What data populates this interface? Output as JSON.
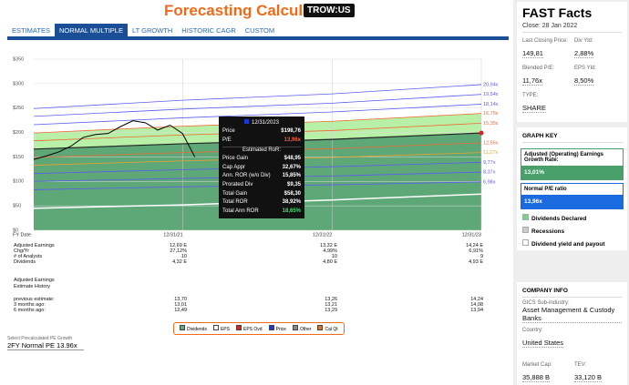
{
  "header": {
    "title": "Forecasting Calculators",
    "ticker": "TROW:US"
  },
  "tabs": [
    "ESTIMATES",
    "NORMAL MULTIPLE",
    "LT GROWTH",
    "HISTORIC CAGR",
    "CUSTOM"
  ],
  "chart": {
    "ylim": [
      0,
      350
    ],
    "yticks": [
      {
        "value": 0,
        "label": "$0"
      },
      {
        "value": 50,
        "label": "$50"
      },
      {
        "value": 100,
        "label": "$100"
      },
      {
        "value": 150,
        "label": "$150"
      },
      {
        "value": 200,
        "label": "$200"
      },
      {
        "value": 250,
        "label": "$250"
      },
      {
        "value": 300,
        "label": "$300"
      },
      {
        "value": 350,
        "label": "$350"
      }
    ],
    "fy_label": "FY Date",
    "x_labels": [
      "12/31/21",
      "12/31/22",
      "12/31/23"
    ],
    "pe_lines": [
      {
        "label": "20,94x",
        "color": "#5b5bf0",
        "values": [
          249,
          266,
          279,
          298
        ]
      },
      {
        "label": "19,54x",
        "color": "#5b5bf0",
        "values": [
          233,
          248,
          260,
          278
        ]
      },
      {
        "label": "18,14x",
        "color": "#5b5bf0",
        "values": [
          216,
          230,
          242,
          258
        ]
      },
      {
        "label": "16,75x",
        "color": "#f06a30",
        "values": [
          199,
          213,
          223,
          239
        ]
      },
      {
        "label": "15,35x",
        "color": "#f06a30",
        "values": [
          183,
          195,
          204,
          219
        ]
      },
      {
        "label": "12,56x",
        "color": "#f06a30",
        "values": [
          149,
          159,
          167,
          179
        ]
      },
      {
        "label": "11,17x",
        "color": "#f0a030",
        "values": [
          133,
          142,
          149,
          159
        ]
      },
      {
        "label": "9,77x",
        "color": "#5b5bf0",
        "values": [
          116,
          124,
          130,
          139
        ]
      },
      {
        "label": "8,37x",
        "color": "#5b5bf0",
        "values": [
          100,
          106,
          111,
          119
        ]
      },
      {
        "label": "6,98x",
        "color": "#5b5bf0",
        "values": [
          83,
          89,
          93,
          99
        ]
      }
    ],
    "normal_line": {
      "color": "#222222",
      "values": [
        166,
        177,
        186,
        199
      ]
    },
    "dividends": {
      "color": "#ffffff",
      "values": [
        45,
        52,
        62,
        74
      ]
    },
    "price": {
      "color": "#000000",
      "values": [
        145,
        152,
        160,
        172,
        190,
        196,
        198,
        212,
        224,
        220,
        205,
        215,
        198,
        150
      ]
    },
    "tooltip": {
      "date": "12/31/2023",
      "rows": [
        [
          "Price",
          "$198,76"
        ],
        [
          "P/E",
          "13,96x"
        ]
      ],
      "subtitle": "Estimated RoR:",
      "ror": [
        [
          "Price Gain",
          "$48,95"
        ],
        [
          "Cap Appr",
          "32,67%"
        ],
        [
          "Ann. ROR (w/o Div)",
          "15,85%"
        ],
        [
          "Prorated Div",
          "$9,35"
        ],
        [
          "Total Gain",
          "$58,30"
        ],
        [
          "Total ROR",
          "38,92%"
        ],
        [
          "Total Ann ROR",
          "18,65%"
        ]
      ]
    }
  },
  "table": {
    "rows": [
      [
        "Adjusted Earnings",
        "12,69 E",
        "13,32 E",
        "14,24 E"
      ],
      [
        "Chg/Yr",
        "27,12%",
        "4,99%",
        "6,91%"
      ],
      [
        "# of Analysts",
        "10",
        "10",
        "9"
      ],
      [
        "Dividends",
        "4,32 E",
        "4,80 E",
        "4,93 E"
      ]
    ],
    "history_title": "Adjusted Earnings Estimate History",
    "history": [
      [
        "previous estimate:",
        "13,70",
        "13,26",
        "14,24"
      ],
      [
        "3 months ago:",
        "13,01",
        "13,21",
        "14,08"
      ],
      [
        "6 months ago:",
        "12,49",
        "13,29",
        "13,94"
      ]
    ]
  },
  "legend": [
    "Dividends",
    "EPS",
    "EPS Ovd",
    "Price",
    "Other",
    "Cal Qt"
  ],
  "select": {
    "label": "Select Precalculated PE Growth",
    "value": "2FY Normal PE 13.96x"
  },
  "sidebar": {
    "title": "FAST Facts",
    "close": "Close: 28 Jan 2022",
    "facts": [
      [
        "Last Closing Price:",
        "149,81"
      ],
      [
        "Div Yld:",
        "2,88%"
      ],
      [
        "Blended P/E:",
        "11,76x"
      ],
      [
        "EPS Yld:",
        "8,50%"
      ],
      [
        "TYPE:",
        "SHARE"
      ]
    ],
    "graph_key": "GRAPH KEY",
    "growth_label": "Adjusted (Operating) Earnings Growth Rate:",
    "growth_value": "13,01%",
    "pe_label": "Normal P/E ratio",
    "pe_value": "13,96x",
    "keys": [
      "Dividends Declared",
      "Recessions",
      "Dividend yield and payout"
    ],
    "company_info": "COMPANY INFO",
    "company": [
      [
        "GICS Sub-industry:",
        "Asset Management & Custody Banks"
      ],
      [
        "Country:",
        "United States"
      ]
    ],
    "caps": [
      [
        "Market Cap:",
        "35,888 B"
      ],
      [
        "TEV:",
        "33,120 B"
      ]
    ]
  }
}
